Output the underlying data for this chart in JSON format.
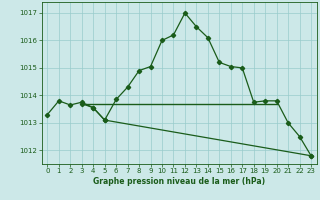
{
  "line1_x": [
    0,
    1,
    2,
    3,
    4,
    5,
    6,
    7,
    8,
    9,
    10,
    11,
    12,
    13,
    14,
    15,
    16,
    17,
    18,
    19,
    20,
    21,
    22,
    23
  ],
  "line1_y": [
    1013.3,
    1013.8,
    1013.65,
    1013.75,
    1013.55,
    1013.1,
    1013.85,
    1014.3,
    1014.9,
    1015.05,
    1016.0,
    1016.2,
    1017.0,
    1016.5,
    1016.1,
    1015.2,
    1015.05,
    1015.0,
    1013.75,
    1013.8,
    1013.8,
    1013.0,
    1012.5,
    1011.8
  ],
  "line2_x": [
    3,
    20
  ],
  "line2_y": [
    1013.7,
    1013.7
  ],
  "line3_x": [
    3,
    4,
    5,
    23
  ],
  "line3_y": [
    1013.7,
    1013.55,
    1013.1,
    1011.8
  ],
  "line_color": "#1a5c1a",
  "background_color": "#cce8e8",
  "grid_color": "#99cccc",
  "xlabel": "Graphe pression niveau de la mer (hPa)",
  "xlabel_color": "#1a5c1a",
  "yticks": [
    1012,
    1013,
    1014,
    1015,
    1016,
    1017
  ],
  "xticks": [
    0,
    1,
    2,
    3,
    4,
    5,
    6,
    7,
    8,
    9,
    10,
    11,
    12,
    13,
    14,
    15,
    16,
    17,
    18,
    19,
    20,
    21,
    22,
    23
  ],
  "ylim": [
    1011.5,
    1017.4
  ],
  "xlim": [
    -0.5,
    23.5
  ]
}
